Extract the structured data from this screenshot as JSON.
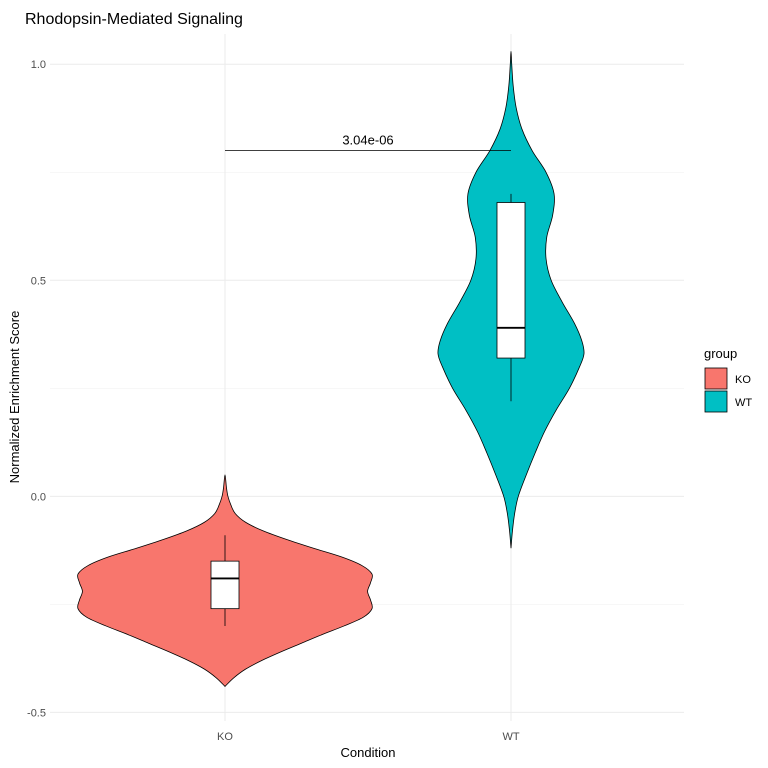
{
  "chart_data": {
    "type": "violin",
    "title": "Rhodopsin-Mediated Signaling",
    "xlabel": "Condition",
    "ylabel": "Normalized Enrichment Score",
    "categories": [
      "KO",
      "WT"
    ],
    "ylim": [
      -0.52,
      1.07
    ],
    "yticks": [
      -0.5,
      0.0,
      0.5,
      1.0
    ],
    "ytick_labels": [
      "-0.5",
      "0.0",
      "0.5",
      "1.0"
    ],
    "grid": true,
    "legend": {
      "title": "group",
      "position": "right",
      "entries": [
        {
          "label": "KO",
          "color": "#F8766D"
        },
        {
          "label": "WT",
          "color": "#00BFC4"
        }
      ]
    },
    "series": [
      {
        "category": "KO",
        "color": "#F8766D",
        "violin_range": [
          -0.44,
          0.05
        ],
        "box": {
          "whisker_low": -0.3,
          "q1": -0.26,
          "median": -0.19,
          "q3": -0.15,
          "whisker_high": -0.09
        },
        "density": [
          [
            -0.44,
            0.0
          ],
          [
            -0.42,
            0.06
          ],
          [
            -0.4,
            0.14
          ],
          [
            -0.38,
            0.25
          ],
          [
            -0.36,
            0.38
          ],
          [
            -0.34,
            0.52
          ],
          [
            -0.32,
            0.66
          ],
          [
            -0.3,
            0.81
          ],
          [
            -0.28,
            0.94
          ],
          [
            -0.26,
            1.0
          ],
          [
            -0.24,
            0.99
          ],
          [
            -0.22,
            0.97
          ],
          [
            -0.2,
            0.99
          ],
          [
            -0.18,
            1.0
          ],
          [
            -0.16,
            0.93
          ],
          [
            -0.14,
            0.79
          ],
          [
            -0.12,
            0.6
          ],
          [
            -0.1,
            0.42
          ],
          [
            -0.08,
            0.26
          ],
          [
            -0.06,
            0.14
          ],
          [
            -0.04,
            0.07
          ],
          [
            -0.02,
            0.04
          ],
          [
            0.0,
            0.02
          ],
          [
            0.02,
            0.01
          ],
          [
            0.05,
            0.0
          ]
        ]
      },
      {
        "category": "WT",
        "color": "#00BFC4",
        "violin_range": [
          -0.12,
          1.03
        ],
        "box": {
          "whisker_low": 0.22,
          "q1": 0.32,
          "median": 0.39,
          "q3": 0.68,
          "whisker_high": 0.7
        },
        "density": [
          [
            -0.12,
            0.0
          ],
          [
            -0.08,
            0.02
          ],
          [
            -0.04,
            0.05
          ],
          [
            0.0,
            0.1
          ],
          [
            0.05,
            0.21
          ],
          [
            0.1,
            0.33
          ],
          [
            0.15,
            0.46
          ],
          [
            0.2,
            0.62
          ],
          [
            0.25,
            0.8
          ],
          [
            0.3,
            0.94
          ],
          [
            0.33,
            1.0
          ],
          [
            0.36,
            0.97
          ],
          [
            0.4,
            0.87
          ],
          [
            0.45,
            0.7
          ],
          [
            0.5,
            0.55
          ],
          [
            0.55,
            0.48
          ],
          [
            0.6,
            0.49
          ],
          [
            0.65,
            0.57
          ],
          [
            0.7,
            0.59
          ],
          [
            0.75,
            0.48
          ],
          [
            0.8,
            0.29
          ],
          [
            0.85,
            0.15
          ],
          [
            0.9,
            0.07
          ],
          [
            0.95,
            0.03
          ],
          [
            1.0,
            0.01
          ],
          [
            1.03,
            0.0
          ]
        ]
      }
    ],
    "annotations": [
      {
        "type": "bracket",
        "from": "KO",
        "to": "WT",
        "y": 0.8,
        "label": "3.04e-06"
      }
    ]
  }
}
